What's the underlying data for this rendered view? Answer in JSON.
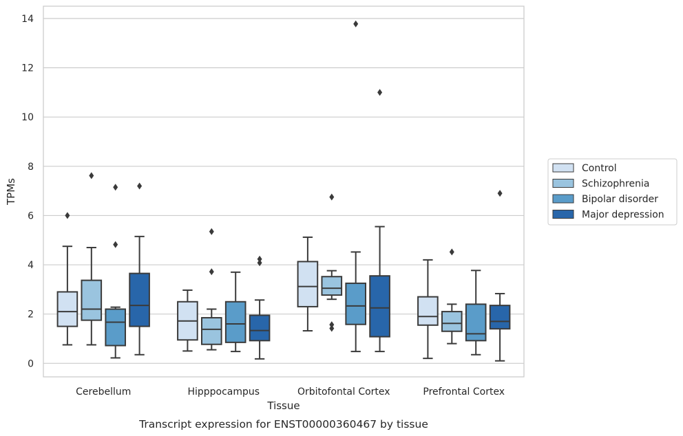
{
  "chart_data": {
    "type": "boxplot",
    "title": "Transcript expression for ENST00000360467 by tissue",
    "xlabel": "Tissue",
    "ylabel": "TPMs",
    "ylim": [
      -0.55,
      14.5
    ],
    "yticks": [
      0,
      2,
      4,
      6,
      8,
      10,
      12,
      14
    ],
    "grid": "horizontal",
    "legend_position": "right",
    "categories": [
      "Cerebellum",
      "Hipppocampus",
      "Orbitofontal Cortex",
      "Prefrontal Cortex"
    ],
    "series": [
      {
        "name": "Control",
        "color": "#d1e1f2",
        "boxes": [
          {
            "whisker_low": 0.75,
            "q1": 1.5,
            "median": 2.1,
            "q3": 2.9,
            "whisker_high": 4.75,
            "outliers": [
              6.0
            ]
          },
          {
            "whisker_low": 0.5,
            "q1": 0.95,
            "median": 1.72,
            "q3": 2.5,
            "whisker_high": 2.97,
            "outliers": []
          },
          {
            "whisker_low": 1.32,
            "q1": 2.3,
            "median": 3.12,
            "q3": 4.13,
            "whisker_high": 5.12,
            "outliers": []
          },
          {
            "whisker_low": 0.2,
            "q1": 1.55,
            "median": 1.9,
            "q3": 2.7,
            "whisker_high": 4.2,
            "outliers": []
          }
        ]
      },
      {
        "name": "Schizophrenia",
        "color": "#9ac4df",
        "boxes": [
          {
            "whisker_low": 0.75,
            "q1": 1.75,
            "median": 2.2,
            "q3": 3.37,
            "whisker_high": 4.7,
            "outliers": [
              7.62
            ]
          },
          {
            "whisker_low": 0.55,
            "q1": 0.77,
            "median": 1.38,
            "q3": 1.85,
            "whisker_high": 2.2,
            "outliers": [
              3.72,
              5.35
            ]
          },
          {
            "whisker_low": 2.6,
            "q1": 2.77,
            "median": 3.05,
            "q3": 3.52,
            "whisker_high": 3.76,
            "outliers": [
              1.42,
              1.57,
              6.75
            ]
          },
          {
            "whisker_low": 0.8,
            "q1": 1.3,
            "median": 1.62,
            "q3": 2.1,
            "whisker_high": 2.4,
            "outliers": [
              4.52
            ]
          }
        ]
      },
      {
        "name": "Bipolar disorder",
        "color": "#5a9cc9",
        "boxes": [
          {
            "whisker_low": 0.22,
            "q1": 0.72,
            "median": 1.67,
            "q3": 2.2,
            "whisker_high": 2.28,
            "outliers": [
              4.82,
              7.15
            ]
          },
          {
            "whisker_low": 0.48,
            "q1": 0.85,
            "median": 1.6,
            "q3": 2.5,
            "whisker_high": 3.7,
            "outliers": []
          },
          {
            "whisker_low": 0.48,
            "q1": 1.58,
            "median": 2.33,
            "q3": 3.25,
            "whisker_high": 4.52,
            "outliers": [
              13.78
            ]
          },
          {
            "whisker_low": 0.35,
            "q1": 0.92,
            "median": 1.2,
            "q3": 2.4,
            "whisker_high": 3.77,
            "outliers": []
          }
        ]
      },
      {
        "name": "Major depression",
        "color": "#2866aa",
        "boxes": [
          {
            "whisker_low": 0.35,
            "q1": 1.5,
            "median": 2.35,
            "q3": 3.65,
            "whisker_high": 5.15,
            "outliers": [
              7.2
            ]
          },
          {
            "whisker_low": 0.18,
            "q1": 0.92,
            "median": 1.33,
            "q3": 1.95,
            "whisker_high": 2.57,
            "outliers": [
              4.08,
              4.23
            ]
          },
          {
            "whisker_low": 0.48,
            "q1": 1.08,
            "median": 2.25,
            "q3": 3.55,
            "whisker_high": 5.55,
            "outliers": [
              11.0
            ]
          },
          {
            "whisker_low": 0.1,
            "q1": 1.4,
            "median": 1.7,
            "q3": 2.35,
            "whisker_high": 2.83,
            "outliers": [
              6.9
            ]
          }
        ]
      }
    ]
  }
}
